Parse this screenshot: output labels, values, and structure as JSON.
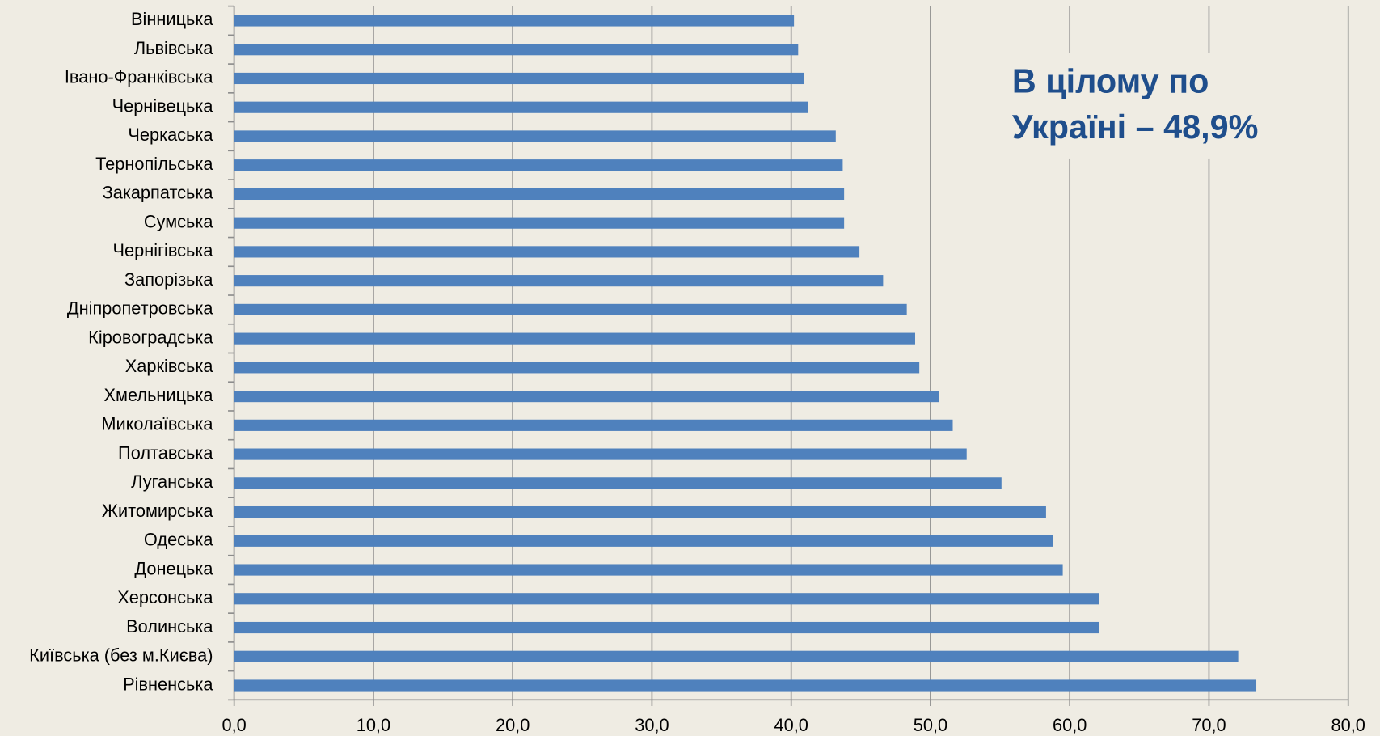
{
  "chart_data": {
    "type": "bar",
    "orientation": "horizontal",
    "categories": [
      "Вінницька",
      "Львівська",
      "Івано-Франківська",
      "Чернівецька",
      "Черкаська",
      "Тернопільська",
      "Закарпатська",
      "Сумська",
      "Чернігівська",
      "Запорізька",
      "Дніпропетровська",
      "Кіровоградська",
      "Харківська",
      "Хмельницька",
      "Миколаївська",
      "Полтавська",
      "Луганська",
      "Житомирська",
      "Одеська",
      "Донецька",
      "Херсонська",
      "Волинська",
      "Київська (без м.Києва)",
      "Рівненська"
    ],
    "values": [
      40.2,
      40.5,
      40.9,
      41.2,
      43.2,
      43.7,
      43.8,
      43.8,
      44.9,
      46.6,
      48.3,
      48.9,
      49.2,
      50.6,
      51.6,
      52.6,
      55.1,
      58.3,
      58.8,
      59.5,
      62.1,
      62.1,
      72.1,
      73.4
    ],
    "color": "#4f81bd",
    "xlim": [
      0,
      80
    ],
    "xticks": [
      {
        "value": 0,
        "label": "0,0"
      },
      {
        "value": 10,
        "label": "10,0"
      },
      {
        "value": 20,
        "label": "20,0"
      },
      {
        "value": 30,
        "label": "30,0"
      },
      {
        "value": 40,
        "label": "40,0"
      },
      {
        "value": 50,
        "label": "50,0"
      },
      {
        "value": 60,
        "label": "60,0"
      },
      {
        "value": 70,
        "label": "70,0"
      },
      {
        "value": 80,
        "label": "80,0"
      }
    ],
    "grid": true,
    "annotation": [
      "В цілому по",
      "Україні – 48,9%"
    ]
  }
}
